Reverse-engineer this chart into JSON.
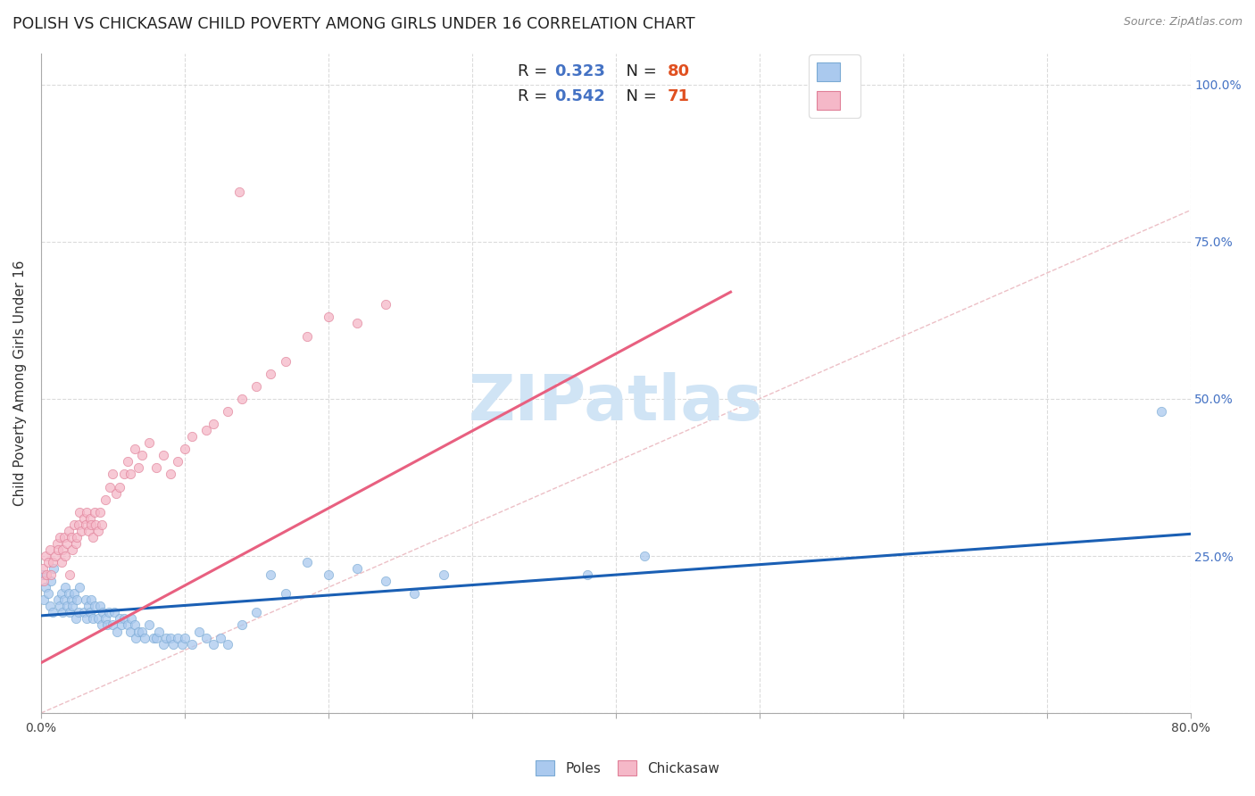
{
  "title": "POLISH VS CHICKASAW CHILD POVERTY AMONG GIRLS UNDER 16 CORRELATION CHART",
  "source": "Source: ZipAtlas.com",
  "ylabel": "Child Poverty Among Girls Under 16",
  "xlim": [
    0.0,
    0.8
  ],
  "ylim": [
    0.0,
    1.05
  ],
  "xtick_positions": [
    0.0,
    0.1,
    0.2,
    0.3,
    0.4,
    0.5,
    0.6,
    0.7,
    0.8
  ],
  "xticklabels": [
    "0.0%",
    "",
    "",
    "",
    "",
    "",
    "",
    "",
    "80.0%"
  ],
  "ytick_right_positions": [
    0.0,
    0.25,
    0.5,
    0.75,
    1.0
  ],
  "yticklabels_right": [
    "",
    "25.0%",
    "50.0%",
    "75.0%",
    "100.0%"
  ],
  "poles_color": "#aac9ee",
  "poles_edge": "#7aaad4",
  "chickasaw_color": "#f5b8c8",
  "chickasaw_edge": "#e08098",
  "poles_line_color": "#1a5fb4",
  "chickasaw_line_color": "#e86080",
  "diagonal_color": "#e8b0b8",
  "watermark_text": "ZIPatlas",
  "watermark_color": "#d0e4f5",
  "legend_R_poles": "0.323",
  "legend_N_poles": "80",
  "legend_R_chickasaw": "0.542",
  "legend_N_chickasaw": "71",
  "poles_line_x0": 0.0,
  "poles_line_x1": 0.8,
  "poles_line_y0": 0.155,
  "poles_line_y1": 0.285,
  "chickasaw_line_x0": 0.0,
  "chickasaw_line_x1": 0.48,
  "chickasaw_line_y0": 0.08,
  "chickasaw_line_y1": 0.67,
  "poles_scatter_x": [
    0.001,
    0.002,
    0.003,
    0.005,
    0.006,
    0.007,
    0.008,
    0.009,
    0.012,
    0.013,
    0.014,
    0.015,
    0.016,
    0.017,
    0.018,
    0.019,
    0.02,
    0.021,
    0.022,
    0.023,
    0.024,
    0.025,
    0.026,
    0.027,
    0.03,
    0.031,
    0.032,
    0.033,
    0.034,
    0.035,
    0.036,
    0.037,
    0.04,
    0.041,
    0.042,
    0.043,
    0.045,
    0.046,
    0.047,
    0.05,
    0.051,
    0.053,
    0.055,
    0.056,
    0.058,
    0.06,
    0.062,
    0.063,
    0.065,
    0.066,
    0.068,
    0.07,
    0.072,
    0.075,
    0.078,
    0.08,
    0.082,
    0.085,
    0.087,
    0.09,
    0.092,
    0.095,
    0.098,
    0.1,
    0.105,
    0.11,
    0.115,
    0.12,
    0.125,
    0.13,
    0.14,
    0.15,
    0.16,
    0.17,
    0.185,
    0.2,
    0.22,
    0.24,
    0.26,
    0.28,
    0.38,
    0.42,
    0.78
  ],
  "poles_scatter_y": [
    0.22,
    0.18,
    0.2,
    0.19,
    0.17,
    0.21,
    0.16,
    0.23,
    0.18,
    0.17,
    0.19,
    0.16,
    0.18,
    0.2,
    0.17,
    0.19,
    0.16,
    0.18,
    0.17,
    0.19,
    0.15,
    0.18,
    0.16,
    0.2,
    0.16,
    0.18,
    0.15,
    0.17,
    0.16,
    0.18,
    0.15,
    0.17,
    0.15,
    0.17,
    0.14,
    0.16,
    0.15,
    0.14,
    0.16,
    0.14,
    0.16,
    0.13,
    0.15,
    0.14,
    0.15,
    0.14,
    0.13,
    0.15,
    0.14,
    0.12,
    0.13,
    0.13,
    0.12,
    0.14,
    0.12,
    0.12,
    0.13,
    0.11,
    0.12,
    0.12,
    0.11,
    0.12,
    0.11,
    0.12,
    0.11,
    0.13,
    0.12,
    0.11,
    0.12,
    0.11,
    0.14,
    0.16,
    0.22,
    0.19,
    0.24,
    0.22,
    0.23,
    0.21,
    0.19,
    0.22,
    0.22,
    0.25,
    0.48
  ],
  "chickasaw_scatter_x": [
    0.001,
    0.002,
    0.003,
    0.004,
    0.005,
    0.006,
    0.007,
    0.008,
    0.01,
    0.011,
    0.012,
    0.013,
    0.014,
    0.015,
    0.016,
    0.017,
    0.018,
    0.019,
    0.02,
    0.021,
    0.022,
    0.023,
    0.024,
    0.025,
    0.026,
    0.027,
    0.028,
    0.03,
    0.031,
    0.032,
    0.033,
    0.034,
    0.035,
    0.036,
    0.037,
    0.038,
    0.04,
    0.041,
    0.042,
    0.045,
    0.048,
    0.05,
    0.052,
    0.055,
    0.058,
    0.06,
    0.062,
    0.065,
    0.068,
    0.07,
    0.075,
    0.08,
    0.085,
    0.09,
    0.095,
    0.1,
    0.105,
    0.115,
    0.12,
    0.13,
    0.14,
    0.15,
    0.16,
    0.17,
    0.185,
    0.2,
    0.22,
    0.24,
    0.138
  ],
  "chickasaw_scatter_y": [
    0.23,
    0.21,
    0.25,
    0.22,
    0.24,
    0.26,
    0.22,
    0.24,
    0.25,
    0.27,
    0.26,
    0.28,
    0.24,
    0.26,
    0.28,
    0.25,
    0.27,
    0.29,
    0.22,
    0.28,
    0.26,
    0.3,
    0.27,
    0.28,
    0.3,
    0.32,
    0.29,
    0.31,
    0.3,
    0.32,
    0.29,
    0.31,
    0.3,
    0.28,
    0.32,
    0.3,
    0.29,
    0.32,
    0.3,
    0.34,
    0.36,
    0.38,
    0.35,
    0.36,
    0.38,
    0.4,
    0.38,
    0.42,
    0.39,
    0.41,
    0.43,
    0.39,
    0.41,
    0.38,
    0.4,
    0.42,
    0.44,
    0.45,
    0.46,
    0.48,
    0.5,
    0.52,
    0.54,
    0.56,
    0.6,
    0.63,
    0.62,
    0.65,
    0.83
  ],
  "bg_color": "#ffffff",
  "grid_color": "#cccccc",
  "title_fontsize": 12.5,
  "label_fontsize": 11,
  "tick_fontsize": 10,
  "legend_fontsize": 13,
  "watermark_fontsize": 52,
  "scatter_size_poles": 55,
  "scatter_size_chickasaw": 55
}
